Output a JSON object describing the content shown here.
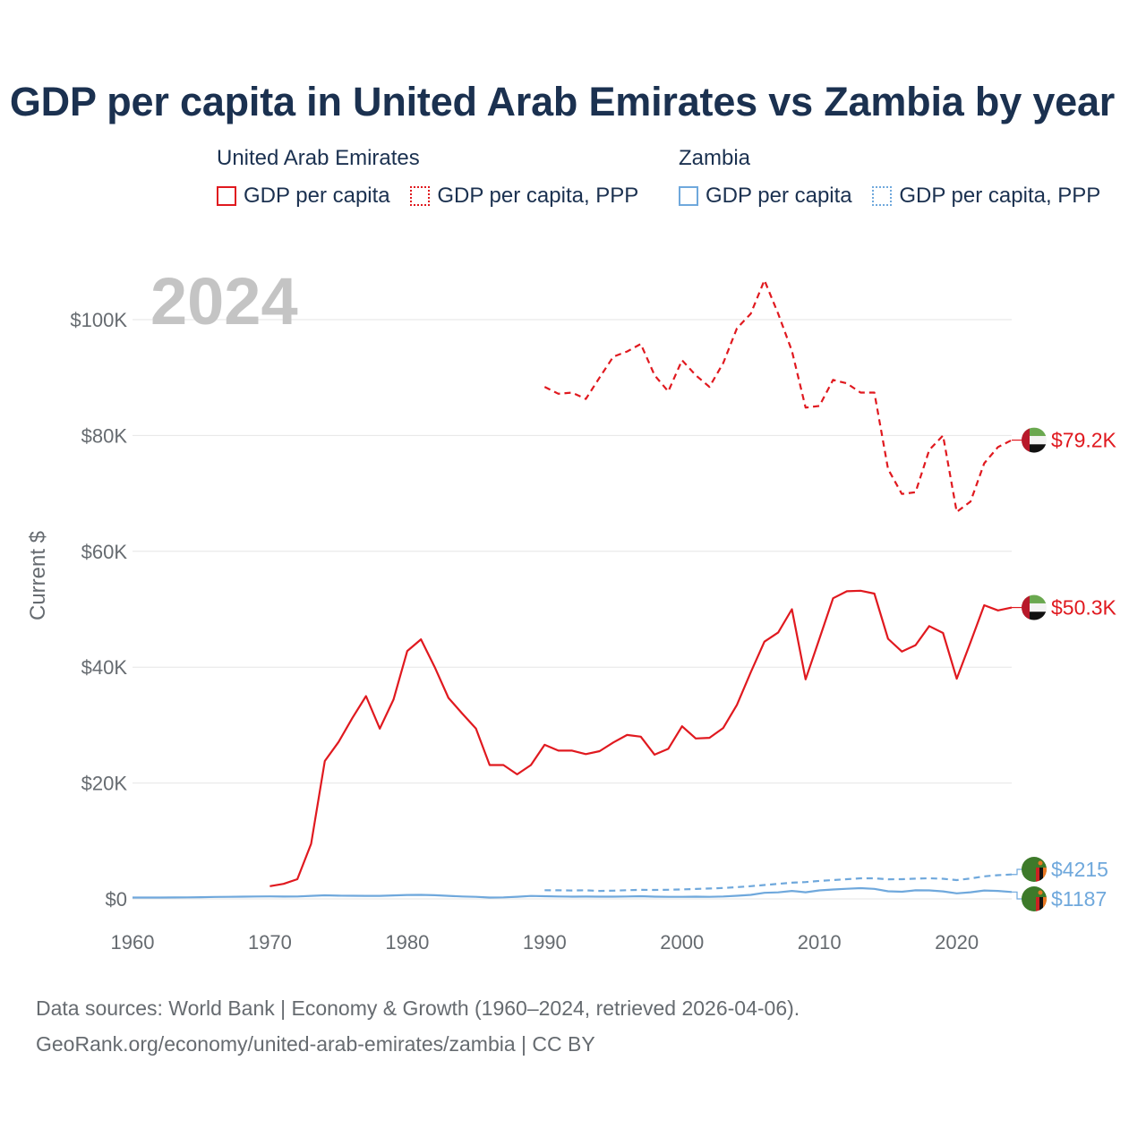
{
  "title": "GDP per capita in United Arab Emirates vs Zambia by year",
  "year_badge": "2024",
  "legend": [
    {
      "group": "United Arab Emirates",
      "items": [
        {
          "label": "GDP per capita",
          "color": "#e0191f",
          "style": "solid"
        },
        {
          "label": "GDP per capita, PPP",
          "color": "#e0191f",
          "style": "dotted"
        }
      ]
    },
    {
      "group": "Zambia",
      "items": [
        {
          "label": "GDP per capita",
          "color": "#6fa8dc",
          "style": "solid"
        },
        {
          "label": "GDP per capita, PPP",
          "color": "#6fa8dc",
          "style": "dotted"
        }
      ]
    }
  ],
  "footer": {
    "line1": "Data sources: World Bank | Economy & Growth (1960–2024, retrieved 2026-04-06).",
    "line2": "GeoRank.org/economy/united-arab-emirates/zambia | CC BY"
  },
  "chart_data": {
    "type": "line",
    "ylabel": "Current $",
    "xlim": [
      1960,
      2024
    ],
    "ylim": [
      0,
      110000
    ],
    "x_ticks": [
      "1960",
      "1970",
      "1980",
      "1990",
      "2000",
      "2010",
      "2020"
    ],
    "y_ticks": [
      {
        "value": 0,
        "label": "$0"
      },
      {
        "value": 20000,
        "label": "$20K"
      },
      {
        "value": 40000,
        "label": "$40K"
      },
      {
        "value": 60000,
        "label": "$60K"
      },
      {
        "value": 80000,
        "label": "$80K"
      },
      {
        "value": 100000,
        "label": "$100K"
      }
    ],
    "grid": true,
    "series": [
      {
        "name": "United Arab Emirates GDP per capita",
        "color": "#e0191f",
        "dash": "solid",
        "end_label": "$50.3K",
        "flag": "uae",
        "x": [
          1970,
          1971,
          1972,
          1973,
          1974,
          1975,
          1976,
          1977,
          1978,
          1979,
          1980,
          1981,
          1982,
          1983,
          1984,
          1985,
          1986,
          1987,
          1988,
          1989,
          1990,
          1991,
          1992,
          1993,
          1994,
          1995,
          1996,
          1997,
          1998,
          1999,
          2000,
          2001,
          2002,
          2003,
          2004,
          2005,
          2006,
          2007,
          2008,
          2009,
          2010,
          2011,
          2012,
          2013,
          2014,
          2015,
          2016,
          2017,
          2018,
          2019,
          2020,
          2021,
          2022,
          2023,
          2024
        ],
        "y": [
          2200,
          2600,
          3400,
          9500,
          23800,
          27100,
          31200,
          35000,
          29400,
          34400,
          42800,
          44800,
          40000,
          34700,
          32000,
          29400,
          23100,
          23100,
          21500,
          23100,
          26600,
          25600,
          25600,
          25000,
          25500,
          27000,
          28300,
          28000,
          24900,
          25900,
          29800,
          27700,
          27800,
          29500,
          33500,
          39100,
          44400,
          46000,
          50000,
          37900,
          44900,
          51900,
          53100,
          53200,
          52700,
          44900,
          42700,
          43800,
          47100,
          45900,
          38000,
          44300,
          50700,
          49800,
          50300
        ]
      },
      {
        "name": "United Arab Emirates GDP per capita, PPP",
        "color": "#e0191f",
        "dash": "dashed",
        "end_label": "$79.2K",
        "flag": "uae",
        "x": [
          1990,
          1991,
          1992,
          1993,
          1994,
          1995,
          1996,
          1997,
          1998,
          1999,
          2000,
          2001,
          2002,
          2003,
          2004,
          2005,
          2006,
          2007,
          2008,
          2009,
          2010,
          2011,
          2012,
          2013,
          2014,
          2015,
          2016,
          2017,
          2018,
          2019,
          2020,
          2021,
          2022,
          2023,
          2024
        ],
        "y": [
          88400,
          87200,
          87400,
          86300,
          90000,
          93600,
          94500,
          95800,
          90400,
          87600,
          93000,
          90400,
          88400,
          92500,
          98500,
          101000,
          106800,
          101000,
          94600,
          84800,
          85100,
          89600,
          89000,
          87400,
          87400,
          74200,
          69900,
          70200,
          77500,
          80000,
          66800,
          68600,
          75200,
          78000,
          79200
        ]
      },
      {
        "name": "Zambia GDP per capita",
        "color": "#6fa8dc",
        "dash": "solid",
        "end_label": "$1187",
        "flag": "zambia",
        "x": [
          1960,
          1961,
          1962,
          1963,
          1964,
          1965,
          1966,
          1967,
          1968,
          1969,
          1970,
          1971,
          1972,
          1973,
          1974,
          1975,
          1976,
          1977,
          1978,
          1979,
          1980,
          1981,
          1982,
          1983,
          1984,
          1985,
          1986,
          1987,
          1988,
          1989,
          1990,
          1991,
          1992,
          1993,
          1994,
          1995,
          1996,
          1997,
          1998,
          1999,
          2000,
          2001,
          2002,
          2003,
          2004,
          2005,
          2006,
          2007,
          2008,
          2009,
          2010,
          2011,
          2012,
          2013,
          2014,
          2015,
          2016,
          2017,
          2018,
          2019,
          2020,
          2021,
          2022,
          2023,
          2024
        ],
        "y": [
          230,
          230,
          230,
          240,
          260,
          300,
          340,
          360,
          380,
          410,
          430,
          400,
          420,
          520,
          620,
          560,
          540,
          520,
          520,
          600,
          680,
          700,
          630,
          530,
          420,
          350,
          230,
          260,
          370,
          510,
          460,
          420,
          380,
          400,
          390,
          390,
          420,
          460,
          390,
          350,
          350,
          380,
          360,
          420,
          540,
          690,
          1050,
          1130,
          1380,
          1150,
          1470,
          1630,
          1740,
          1850,
          1730,
          1310,
          1240,
          1490,
          1470,
          1300,
          960,
          1140,
          1460,
          1380,
          1187
        ]
      },
      {
        "name": "Zambia GDP per capita, PPP",
        "color": "#6fa8dc",
        "dash": "dashed",
        "end_label": "$4215",
        "flag": "zambia",
        "x": [
          1990,
          1991,
          1992,
          1993,
          1994,
          1995,
          1996,
          1997,
          1998,
          1999,
          2000,
          2001,
          2002,
          2003,
          2004,
          2005,
          2006,
          2007,
          2008,
          2009,
          2010,
          2011,
          2012,
          2013,
          2014,
          2015,
          2016,
          2017,
          2018,
          2019,
          2020,
          2021,
          2022,
          2023,
          2024
        ],
        "y": [
          1500,
          1480,
          1450,
          1480,
          1380,
          1420,
          1500,
          1560,
          1540,
          1570,
          1640,
          1720,
          1790,
          1890,
          2030,
          2200,
          2400,
          2600,
          2800,
          2900,
          3100,
          3250,
          3400,
          3550,
          3550,
          3380,
          3400,
          3500,
          3550,
          3480,
          3250,
          3520,
          3900,
          4100,
          4215
        ]
      }
    ]
  }
}
